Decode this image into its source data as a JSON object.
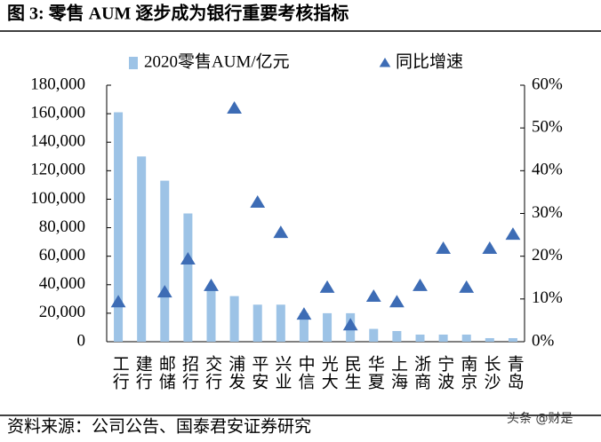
{
  "chart_data": {
    "type": "bar",
    "title": "图 3:  零售 AUM 逐步成为银行重要考核指标",
    "source": "资料来源：公司公告、国泰君安证券研究",
    "watermark": "头条 @财是",
    "categories": [
      "工行",
      "建行",
      "邮储",
      "招行",
      "交行",
      "浦发",
      "平安",
      "兴业",
      "中信",
      "光大",
      "民生",
      "华夏",
      "上海",
      "浙商",
      "宁波",
      "南京",
      "长沙",
      "青岛"
    ],
    "series": [
      {
        "name": "2020零售AUM/亿元",
        "color": "#9dc3e6",
        "type": "bar",
        "values": [
          161000,
          130000,
          113000,
          90000,
          39000,
          32000,
          26000,
          26000,
          20000,
          20000,
          20000,
          9000,
          7500,
          5000,
          5000,
          5000,
          2500,
          2500
        ]
      },
      {
        "name": "同比增速",
        "color": "#3d6cb5",
        "type": "scatter",
        "axis": "y2",
        "values": [
          9.3,
          null,
          11.6,
          19.3,
          13.1,
          54.6,
          32.6,
          25.5,
          6.4,
          12.7,
          3.9,
          10.6,
          9.3,
          13.1,
          21.8,
          12.7,
          21.8,
          25.1
        ]
      }
    ],
    "ylim": [
      0,
      180000
    ],
    "yticks": [
      0,
      {
        "value": 20000,
        "label": "20,000"
      },
      {
        "value": 40000,
        "label": "40,000"
      },
      {
        "value": 60000,
        "label": "60,000"
      },
      {
        "value": 80000,
        "label": "80,000"
      },
      {
        "value": 100000,
        "label": "100,000"
      },
      {
        "value": 120000,
        "label": "120,000"
      },
      {
        "value": 140000,
        "label": "140,000"
      },
      {
        "value": 160000,
        "label": "160,000"
      },
      {
        "value": 180000,
        "label": "180,000"
      }
    ],
    "y2lim": [
      0,
      60
    ],
    "y2ticks": [
      {
        "value": 0,
        "label": "0%"
      },
      {
        "value": 10,
        "label": "10%"
      },
      {
        "value": 20,
        "label": "20%"
      },
      {
        "value": 30,
        "label": "30%"
      },
      {
        "value": 40,
        "label": "40%"
      },
      {
        "value": 50,
        "label": "50%"
      },
      {
        "value": 60,
        "label": "60%"
      }
    ],
    "legend": "top",
    "grid": false
  }
}
